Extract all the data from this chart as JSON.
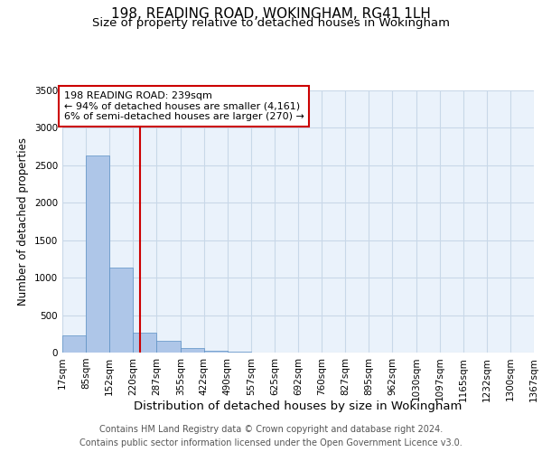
{
  "title": "198, READING ROAD, WOKINGHAM, RG41 1LH",
  "subtitle": "Size of property relative to detached houses in Wokingham",
  "xlabel": "Distribution of detached houses by size in Wokingham",
  "ylabel": "Number of detached properties",
  "footer_line1": "Contains HM Land Registry data © Crown copyright and database right 2024.",
  "footer_line2": "Contains public sector information licensed under the Open Government Licence v3.0.",
  "bin_edges": [
    17,
    85,
    152,
    220,
    287,
    355,
    422,
    490,
    557,
    625,
    692,
    760,
    827,
    895,
    962,
    1030,
    1097,
    1165,
    1232,
    1300,
    1367
  ],
  "bar_heights": [
    230,
    2630,
    1140,
    270,
    160,
    60,
    20,
    10,
    5,
    3,
    2,
    2,
    1,
    1,
    1,
    1,
    0,
    0,
    0,
    0
  ],
  "bar_color": "#aec6e8",
  "bar_edge_color": "#5a8fc4",
  "property_size": 239,
  "vline_color": "#cc0000",
  "annotation_text": "198 READING ROAD: 239sqm\n← 94% of detached houses are smaller (4,161)\n6% of semi-detached houses are larger (270) →",
  "annotation_box_color": "#cc0000",
  "ylim": [
    0,
    3500
  ],
  "grid_color": "#c8d8e8",
  "background_color": "#eaf2fb",
  "title_fontsize": 11,
  "subtitle_fontsize": 9.5,
  "xlabel_fontsize": 9.5,
  "ylabel_fontsize": 8.5,
  "tick_fontsize": 7.5,
  "annotation_fontsize": 8,
  "footer_fontsize": 7
}
